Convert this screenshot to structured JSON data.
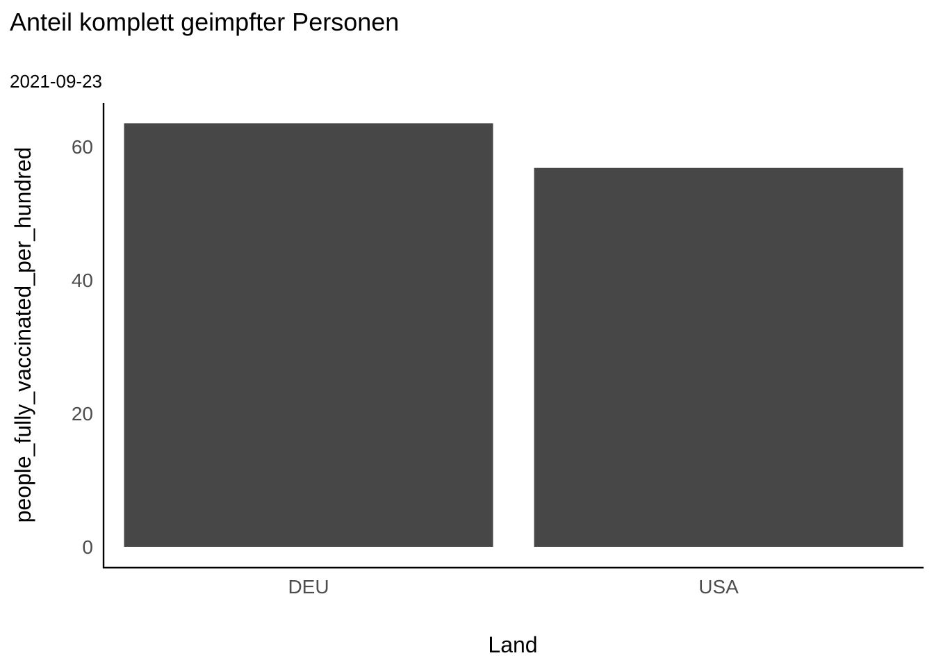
{
  "chart_data": {
    "type": "bar",
    "title": "Anteil komplett geimpfter Personen",
    "subtitle": "2021-09-23",
    "xlabel": "Land",
    "ylabel": "people_fully_vaccinated_per_hundred",
    "categories": [
      "DEU",
      "USA"
    ],
    "values": [
      63.5,
      56.8
    ],
    "ylim": [
      0,
      66.5
    ],
    "yticks": [
      0,
      20,
      40,
      60
    ],
    "grid": false,
    "legend": "none",
    "bar_color": "#474747"
  }
}
